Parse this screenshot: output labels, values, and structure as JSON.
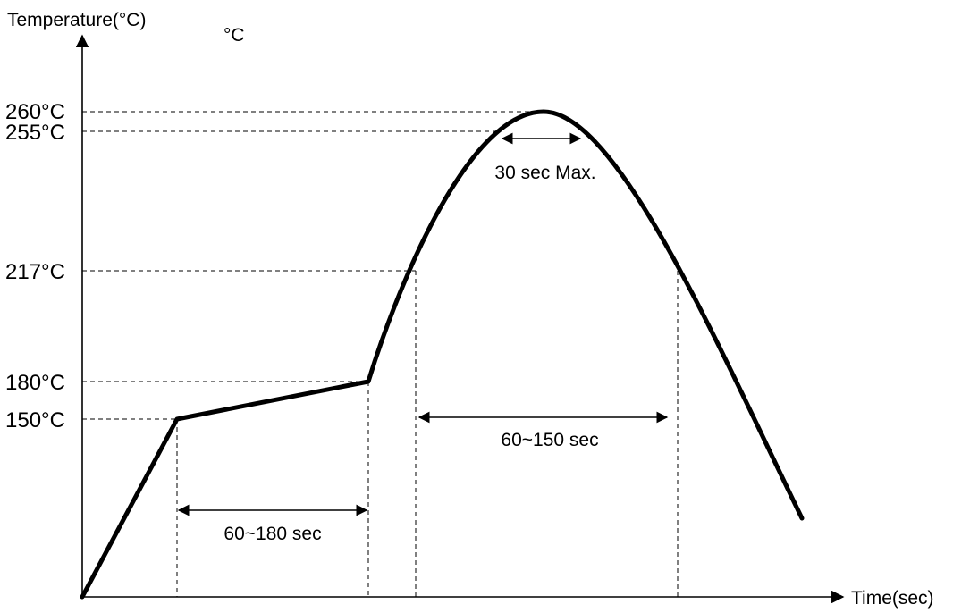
{
  "diagram": {
    "y_axis_title": "Temperature(°C)",
    "y_unit": "°C",
    "x_axis_title": "Time(sec)",
    "temperature_levels": [
      {
        "name": "temp-260",
        "label": "260°C",
        "value": 260
      },
      {
        "name": "temp-255",
        "label": "255°C",
        "value": 255
      },
      {
        "name": "temp-217",
        "label": "217°C",
        "value": 217
      },
      {
        "name": "temp-180",
        "label": "180°C",
        "value": 180
      },
      {
        "name": "temp-150",
        "label": "150°C",
        "value": 150
      }
    ],
    "intervals": [
      {
        "name": "interval-preheat",
        "label": "60~180 sec"
      },
      {
        "name": "interval-above-217",
        "label": "60~150 sec"
      },
      {
        "name": "interval-peak",
        "label": "30 sec Max."
      }
    ],
    "colors": {
      "line": "#000000",
      "background": "#ffffff"
    }
  }
}
